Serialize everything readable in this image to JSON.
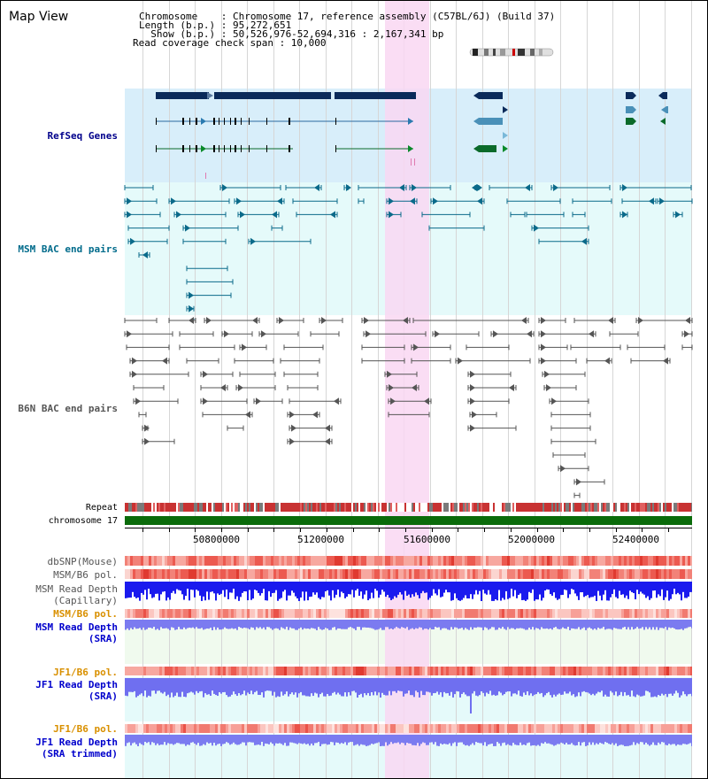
{
  "app": {
    "title": "Map View"
  },
  "header": {
    "chromosome_line": "Chromosome    : Chromosome 17, reference assembly (C57BL/6J) (Build 37)",
    "length_line": "Length (b.p.) : 95,272,651",
    "show_line": "  Show (b.p.) : 50,526,976-52,694,316 : 2,167,341 bp",
    "coverage_line": "Read coverage check span : 10,000"
  },
  "tracks": {
    "refseq": "RefSeq Genes",
    "msm_bac": "MSM BAC end pairs",
    "b6n_bac": "B6N BAC end pairs",
    "repeat": "Repeat",
    "chromosome": "chromosome 17",
    "dbsnp": "dbSNP(Mouse)",
    "msm_b6_pol_1": "MSM/B6 pol.",
    "msm_read_depth_cap_1": "MSM Read Depth",
    "msm_read_depth_cap_2": "(Capillary)",
    "msm_b6_pol_2": "MSM/B6 pol.",
    "msm_read_depth_sra_1": "MSM Read Depth",
    "msm_read_depth_sra_2": "(SRA)",
    "jf1_b6_pol_1": "JF1/B6 pol.",
    "jf1_read_depth_sra_1": "JF1 Read Depth",
    "jf1_read_depth_sra_2": "(SRA)",
    "jf1_b6_pol_2": "JF1/B6 pol.",
    "jf1_read_depth_trim_1": "JF1 Read Depth",
    "jf1_read_depth_trim_2": "(SRA trimmed)"
  },
  "axis": {
    "ticks": [
      "50800000",
      "51200000",
      "51600000",
      "52000000",
      "52400000"
    ]
  },
  "colors": {
    "refseq_bg": "#d8eefa",
    "msm_bg": "#e5fafa",
    "highlight": "#f9d7f2",
    "chromosome_bar": "#0a6b0a",
    "navy_label": "#00008b",
    "teal_label": "#006b8b",
    "gray_label": "#555555",
    "orange_label": "#d99000",
    "blue_label": "#0000cc"
  }
}
